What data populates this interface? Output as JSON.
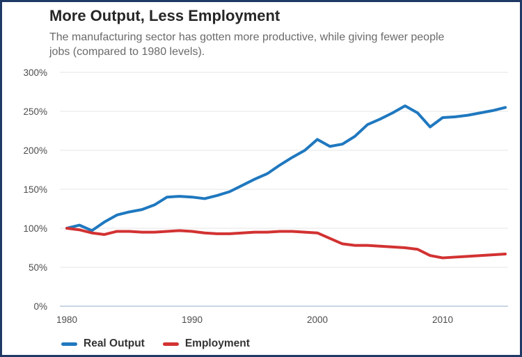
{
  "header": {
    "title": "More Output, Less Employment",
    "subtitle": "The manufacturing sector has gotten more productive, while giving fewer people jobs (compared to 1980 levels)."
  },
  "chart_data": {
    "type": "line",
    "x": [
      1980,
      1981,
      1982,
      1983,
      1984,
      1985,
      1986,
      1987,
      1988,
      1989,
      1990,
      1991,
      1992,
      1993,
      1994,
      1995,
      1996,
      1997,
      1998,
      1999,
      2000,
      2001,
      2002,
      2003,
      2004,
      2005,
      2006,
      2007,
      2008,
      2009,
      2010,
      2011,
      2012,
      2013,
      2014,
      2015
    ],
    "series": [
      {
        "name": "Real Output",
        "color": "#1f78bf",
        "values": [
          100,
          104,
          97,
          108,
          117,
          121,
          124,
          130,
          140,
          141,
          140,
          138,
          142,
          147,
          155,
          163,
          170,
          181,
          191,
          200,
          214,
          205,
          208,
          218,
          233,
          240,
          248,
          257,
          248,
          230,
          242,
          243,
          245,
          248,
          251,
          255
        ]
      },
      {
        "name": "Employment",
        "color": "#d23232",
        "values": [
          100,
          98,
          94,
          92,
          96,
          96,
          95,
          95,
          96,
          97,
          96,
          94,
          93,
          93,
          94,
          95,
          95,
          96,
          96,
          95,
          94,
          87,
          80,
          78,
          78,
          77,
          76,
          75,
          73,
          65,
          62,
          63,
          64,
          65,
          66,
          67
        ]
      }
    ],
    "title": "More Output, Less Employment",
    "xlabel": "",
    "ylabel": "",
    "ylim": [
      0,
      300
    ],
    "y_ticks": [
      0,
      50,
      100,
      150,
      200,
      250,
      300
    ],
    "y_tick_suffix": "%",
    "x_ticks": [
      1980,
      1990,
      2000,
      2010
    ],
    "grid": true,
    "legend_position": "bottom-left",
    "styles": {
      "background": "#ffffff",
      "border_color": "#203864",
      "grid_color": "#e6e6e6",
      "axis_line_color": "#c9d6e2",
      "tick_label_color": "#4d4d4d",
      "title_color": "#262626",
      "subtitle_color": "#6a6a6a",
      "legend_text_color": "#333333"
    }
  }
}
